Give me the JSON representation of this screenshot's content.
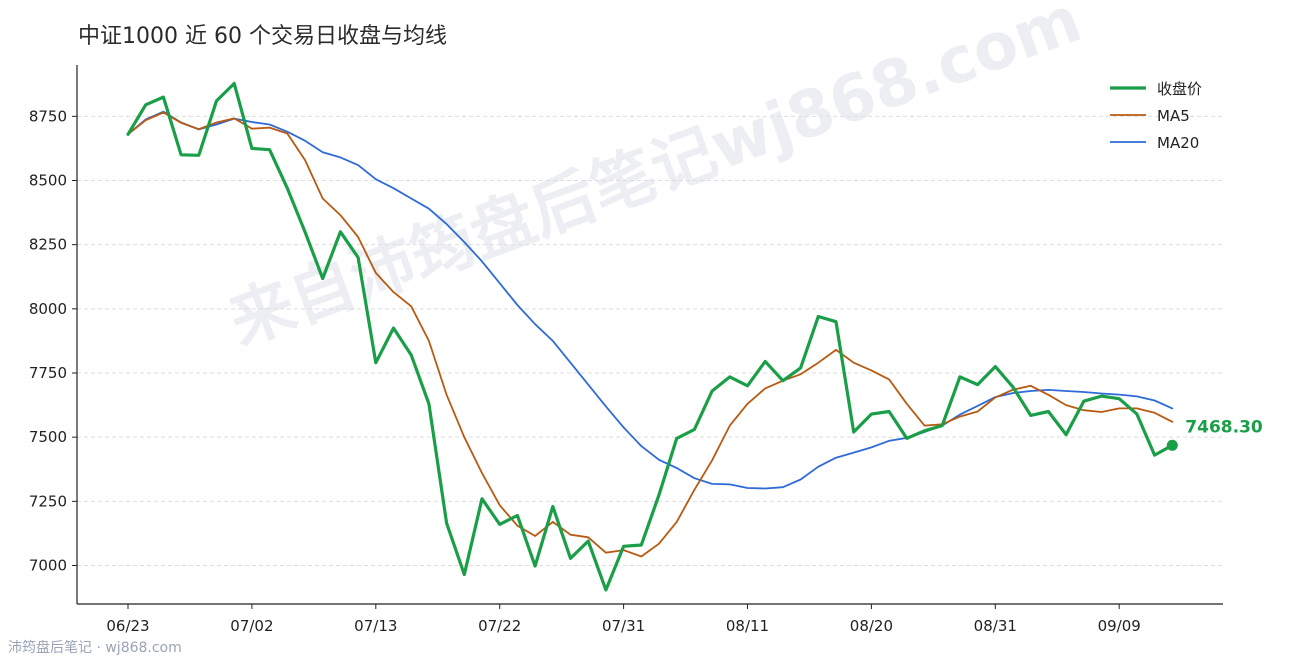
{
  "title": "中证1000 近 60 个交易日收盘与均线",
  "watermark": "来自沛筠盘后笔记wj868.com",
  "footer": "沛筠盘后笔记 · wj868.com",
  "colors": {
    "close": "#1a9e48",
    "ma5": "#b85a12",
    "ma20": "#2f6bd8",
    "grid": "#dddddd",
    "axis": "#222222"
  },
  "chart_data": {
    "type": "line",
    "title": "中证1000 近 60 个交易日收盘与均线",
    "xlabel": "",
    "ylabel": "",
    "ylim": [
      6850,
      8950
    ],
    "yticks": [
      7000,
      7250,
      7500,
      7750,
      8000,
      8250,
      8500,
      8750
    ],
    "xtick_labels": [
      "06/23",
      "07/02",
      "07/13",
      "07/22",
      "07/31",
      "08/11",
      "08/20",
      "08/31",
      "09/09"
    ],
    "xtick_index": [
      0,
      7,
      14,
      21,
      28,
      35,
      42,
      49,
      56
    ],
    "grid": "horizontal dashed",
    "legend_position": "top-right",
    "last_value_label": "7468.30",
    "series": [
      {
        "name": "收盘价",
        "values": [
          8680,
          8795,
          8825,
          8600,
          8598,
          8810,
          8878,
          8625,
          8620,
          8470,
          8300,
          8118,
          8300,
          8200,
          7790,
          7925,
          7820,
          7630,
          7165,
          6965,
          7260,
          7160,
          7195,
          6998,
          7230,
          7028,
          7095,
          6905,
          7075,
          7080,
          7275,
          7495,
          7530,
          7680,
          7735,
          7700,
          7795,
          7720,
          7770,
          7970,
          7950,
          7520,
          7590,
          7600,
          7495,
          7525,
          7545,
          7735,
          7705,
          7775,
          7695,
          7585,
          7600,
          7510,
          7640,
          7660,
          7650,
          7590,
          7430,
          7468.3
        ]
      },
      {
        "name": "MA5",
        "values": [
          8680,
          8735,
          8765,
          8725,
          8700,
          8726,
          8742,
          8702,
          8706,
          8683,
          8580,
          8430,
          8365,
          8280,
          8140,
          8065,
          8010,
          7875,
          7665,
          7500,
          7360,
          7235,
          7155,
          7115,
          7170,
          7120,
          7110,
          7050,
          7060,
          7035,
          7085,
          7170,
          7295,
          7410,
          7545,
          7630,
          7690,
          7720,
          7745,
          7790,
          7840,
          7790,
          7760,
          7725,
          7630,
          7545,
          7550,
          7580,
          7600,
          7655,
          7685,
          7700,
          7665,
          7625,
          7605,
          7598,
          7612,
          7612,
          7595,
          7560
        ]
      },
      {
        "name": "MA20",
        "values": [
          8680,
          8738,
          8768,
          8726,
          8699,
          8718,
          8741,
          8728,
          8718,
          8690,
          8655,
          8610,
          8590,
          8560,
          8505,
          8470,
          8430,
          8390,
          8330,
          8260,
          8185,
          8100,
          8015,
          7940,
          7875,
          7790,
          7705,
          7620,
          7538,
          7465,
          7412,
          7380,
          7340,
          7318,
          7316,
          7302,
          7300,
          7305,
          7335,
          7385,
          7420,
          7440,
          7460,
          7486,
          7497,
          7520,
          7545,
          7588,
          7622,
          7656,
          7672,
          7680,
          7684,
          7680,
          7676,
          7670,
          7666,
          7659,
          7643,
          7612
        ]
      }
    ]
  }
}
